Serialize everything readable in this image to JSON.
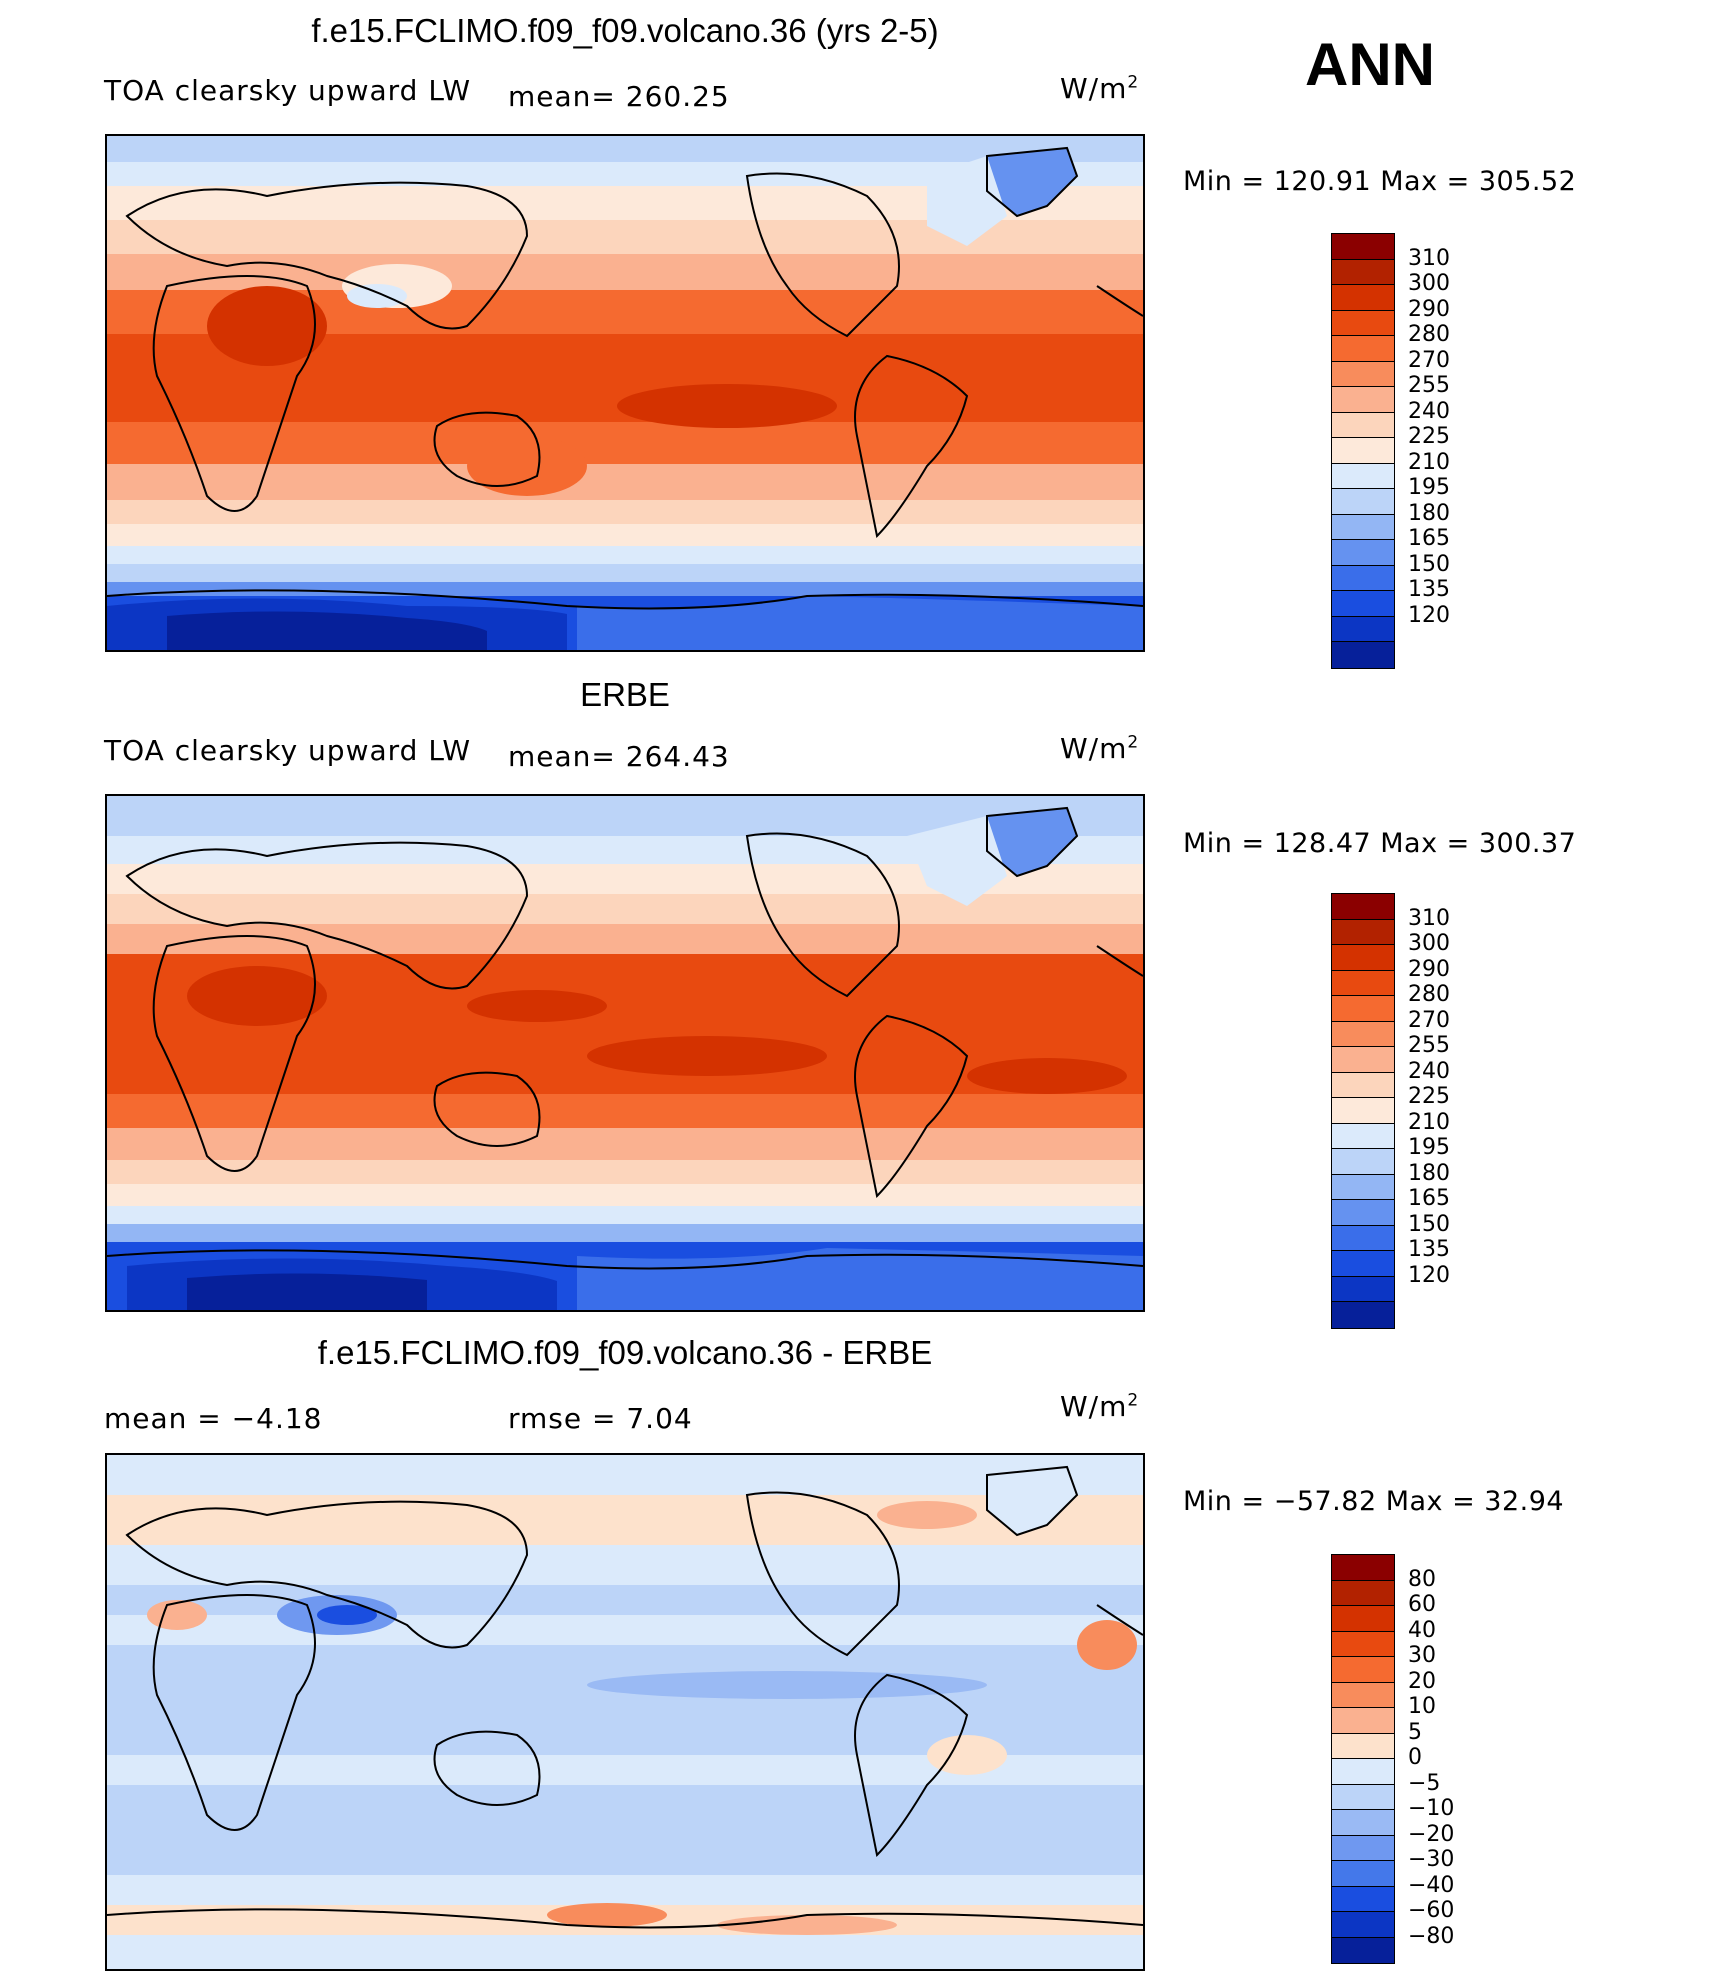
{
  "season": "ANN",
  "panels": [
    {
      "title": "f.e15.FCLIMO.f09_f09.volcano.36 (yrs 2-5)",
      "variable": "TOA clearsky upward LW",
      "stat1": "mean= 260.25",
      "stat2": "",
      "units": "W/m",
      "units_exp": "2",
      "minmax": "Min = 120.91 Max = 305.52",
      "map_kind": "model"
    },
    {
      "title": "ERBE",
      "variable": "TOA clearsky upward LW",
      "stat1": "mean= 264.43",
      "stat2": "",
      "units": "W/m",
      "units_exp": "2",
      "minmax": "Min = 128.47 Max = 300.37",
      "map_kind": "obs"
    },
    {
      "title": "f.e15.FCLIMO.f09_f09.volcano.36 - ERBE",
      "variable": "",
      "stat1": "mean =   −4.18",
      "stat2": "rmse =    7.04",
      "units": "W/m",
      "units_exp": "2",
      "minmax": "Min = −57.82 Max =  32.94",
      "map_kind": "diff"
    }
  ],
  "colorbars": {
    "absolute": {
      "labels": [
        "310",
        "300",
        "290",
        "280",
        "270",
        "255",
        "240",
        "225",
        "210",
        "195",
        "180",
        "165",
        "150",
        "135",
        "120"
      ],
      "colors": [
        "#8b0000",
        "#b22200",
        "#d43200",
        "#e84a10",
        "#f56a30",
        "#f88c5c",
        "#fab190",
        "#fcd5bc",
        "#fde9da",
        "#dbeafb",
        "#bcd4f8",
        "#93b6f4",
        "#6592f0",
        "#3a6eea",
        "#1a4ee0",
        "#0c36c4",
        "#06209a"
      ]
    },
    "difference": {
      "labels": [
        "80",
        "60",
        "40",
        "30",
        "20",
        "10",
        "5",
        "0",
        "−5",
        "−10",
        "−20",
        "−30",
        "−40",
        "−60",
        "−80"
      ],
      "colors": [
        "#8b0000",
        "#b22200",
        "#d43200",
        "#e84a10",
        "#f56a30",
        "#f88c5c",
        "#fab190",
        "#fde2cc",
        "#dbeafb",
        "#bcd4f8",
        "#9abaf4",
        "#6f98f0",
        "#4478ea",
        "#1a4ee0",
        "#0c36c4",
        "#06209a"
      ]
    }
  }
}
